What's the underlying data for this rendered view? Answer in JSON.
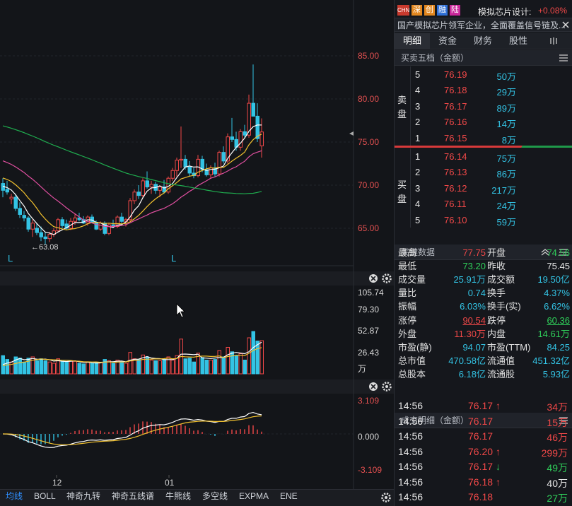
{
  "stock": {
    "badges": [
      "CHN",
      "深",
      "创",
      "融",
      "陆"
    ],
    "name": "模拟芯片设计:",
    "change": "+0.08%",
    "desc": "国产模拟芯片领军企业，全面覆盖信号链及..."
  },
  "tabs": [
    "明细",
    "资金",
    "财务",
    "股性"
  ],
  "order_book": {
    "title": "买卖五档（金额）",
    "sell_label": [
      "卖",
      "盘"
    ],
    "buy_label": [
      "买",
      "盘"
    ],
    "asks": [
      {
        "lvl": "5",
        "price": "76.19",
        "amt": "50万"
      },
      {
        "lvl": "4",
        "price": "76.18",
        "amt": "29万"
      },
      {
        "lvl": "3",
        "price": "76.17",
        "amt": "89万"
      },
      {
        "lvl": "2",
        "price": "76.16",
        "amt": "14万"
      },
      {
        "lvl": "1",
        "price": "76.15",
        "amt": "8万"
      }
    ],
    "bids": [
      {
        "lvl": "1",
        "price": "76.14",
        "amt": "75万"
      },
      {
        "lvl": "2",
        "price": "76.13",
        "amt": "86万"
      },
      {
        "lvl": "3",
        "price": "76.12",
        "amt": "217万"
      },
      {
        "lvl": "4",
        "price": "76.11",
        "amt": "24万"
      },
      {
        "lvl": "5",
        "price": "76.10",
        "amt": "59万"
      }
    ]
  },
  "key_data": {
    "title": "关键数据",
    "rows": [
      [
        {
          "l": "最高",
          "v": "77.75",
          "c": "red"
        },
        {
          "l": "开盘",
          "v": "74.56",
          "c": "green"
        }
      ],
      [
        {
          "l": "最低",
          "v": "73.20",
          "c": "green"
        },
        {
          "l": "昨收",
          "v": "75.45",
          "c": "white"
        }
      ],
      [
        {
          "l": "成交量",
          "v": "25.91万",
          "c": "cyan"
        },
        {
          "l": "成交额",
          "v": "19.50亿",
          "c": "cyan"
        }
      ],
      [
        {
          "l": "量比",
          "v": "0.74",
          "c": "cyan"
        },
        {
          "l": "换手",
          "v": "4.37%",
          "c": "cyan"
        }
      ],
      [
        {
          "l": "振幅",
          "v": "6.03%",
          "c": "cyan"
        },
        {
          "l": "换手(实)",
          "v": "6.62%",
          "c": "cyan"
        }
      ],
      [
        {
          "l": "涨停",
          "v": "90.54",
          "c": "red"
        },
        {
          "l": "跌停",
          "v": "60.36",
          "c": "green"
        }
      ],
      [
        {
          "l": "外盘",
          "v": "11.30万",
          "c": "red"
        },
        {
          "l": "内盘",
          "v": "14.61万",
          "c": "green"
        }
      ],
      [
        {
          "l": "市盈(静)",
          "v": "94.07",
          "c": "cyan"
        },
        {
          "l": "市盈(TTM)",
          "v": "84.25",
          "c": "cyan"
        }
      ],
      [
        {
          "l": "总市值",
          "v": "470.58亿",
          "c": "cyan"
        },
        {
          "l": "流通值",
          "v": "451.32亿",
          "c": "cyan"
        }
      ],
      [
        {
          "l": "总股本",
          "v": "6.18亿",
          "c": "cyan"
        },
        {
          "l": "流通股",
          "v": "5.93亿",
          "c": "cyan"
        }
      ]
    ]
  },
  "trades": {
    "title": "成交明细（金额）",
    "rows": [
      {
        "t": "14:56",
        "p": "76.17",
        "d": "up",
        "v": "34万",
        "c": "red",
        "vc": "red"
      },
      {
        "t": "14:56",
        "p": "76.17",
        "d": "",
        "v": "15万",
        "c": "red",
        "vc": "red"
      },
      {
        "t": "14:56",
        "p": "76.17",
        "d": "",
        "v": "46万",
        "c": "red",
        "vc": "red"
      },
      {
        "t": "14:56",
        "p": "76.20",
        "d": "up",
        "v": "299万",
        "c": "red",
        "vc": "red"
      },
      {
        "t": "14:56",
        "p": "76.17",
        "d": "down",
        "v": "49万",
        "c": "red",
        "vc": "green"
      },
      {
        "t": "14:56",
        "p": "76.18",
        "d": "up",
        "v": "40万",
        "c": "red",
        "vc": "white"
      },
      {
        "t": "14:56",
        "p": "76.18",
        "d": "",
        "v": "27万",
        "c": "red",
        "vc": "green"
      }
    ]
  },
  "toolbar": [
    "均线",
    "BOLL",
    "神奇九转",
    "神奇五线谱",
    "牛熊线",
    "多空线",
    "EXPMA",
    "ENE"
  ],
  "chart_data": [
    {
      "type": "candlestick",
      "yticks": [
        "85.00",
        "80.00",
        "75.00",
        "70.00",
        "65.00"
      ],
      "low_label": "←63.08",
      "markers": [
        "L",
        "L"
      ],
      "ohlc": [
        [
          70.2,
          70.8,
          68.6,
          69.4
        ],
        [
          69.5,
          70.5,
          68.9,
          69.2
        ],
        [
          68.4,
          69.0,
          67.8,
          68.6
        ],
        [
          68.6,
          69.0,
          67.0,
          67.3
        ],
        [
          67.3,
          68.0,
          66.2,
          66.6
        ],
        [
          66.5,
          67.0,
          65.8,
          66.2
        ],
        [
          66.2,
          66.4,
          64.6,
          64.9
        ],
        [
          64.9,
          66.0,
          64.0,
          65.6
        ],
        [
          65.0,
          65.6,
          64.2,
          64.5
        ],
        [
          64.5,
          65.2,
          63.5,
          64.0
        ],
        [
          64.0,
          64.5,
          63.1,
          63.8
        ],
        [
          63.8,
          64.6,
          63.4,
          64.3
        ],
        [
          64.3,
          65.0,
          64.0,
          64.7
        ],
        [
          64.7,
          66.2,
          64.5,
          66.0
        ],
        [
          66.0,
          66.3,
          65.0,
          65.3
        ],
        [
          65.5,
          66.0,
          64.8,
          65.0
        ],
        [
          65.0,
          66.2,
          64.8,
          65.8
        ],
        [
          65.8,
          66.7,
          65.4,
          66.2
        ],
        [
          66.2,
          66.8,
          65.8,
          66.0
        ],
        [
          66.0,
          66.4,
          65.5,
          65.6
        ],
        [
          65.6,
          66.5,
          65.3,
          66.3
        ],
        [
          66.3,
          66.6,
          65.6,
          65.7
        ],
        [
          65.7,
          65.9,
          64.8,
          64.9
        ],
        [
          64.9,
          65.8,
          64.7,
          65.6
        ],
        [
          65.6,
          65.8,
          64.2,
          64.4
        ],
        [
          64.4,
          65.6,
          64.2,
          65.4
        ],
        [
          65.4,
          66.0,
          65.0,
          65.2
        ],
        [
          65.2,
          66.5,
          65.0,
          66.3
        ],
        [
          66.3,
          66.8,
          65.6,
          65.8
        ],
        [
          65.8,
          66.2,
          65.2,
          66.0
        ],
        [
          66.0,
          68.5,
          65.8,
          68.2
        ],
        [
          68.2,
          69.5,
          67.8,
          69.2
        ],
        [
          69.2,
          70.0,
          68.4,
          68.8
        ],
        [
          68.8,
          70.8,
          68.5,
          70.5
        ],
        [
          70.5,
          71.6,
          69.6,
          69.8
        ],
        [
          69.8,
          70.5,
          69.0,
          70.1
        ],
        [
          70.1,
          70.4,
          69.0,
          69.4
        ],
        [
          69.4,
          70.0,
          68.6,
          69.8
        ],
        [
          69.8,
          70.6,
          69.0,
          69.2
        ],
        [
          69.2,
          71.0,
          69.0,
          70.8
        ],
        [
          70.8,
          72.0,
          70.5,
          71.7
        ],
        [
          71.7,
          73.2,
          71.0,
          72.9
        ],
        [
          72.9,
          76.8,
          72.0,
          73.0
        ],
        [
          73.0,
          73.5,
          71.8,
          72.1
        ],
        [
          72.1,
          72.8,
          71.0,
          71.4
        ],
        [
          71.4,
          72.0,
          70.8,
          71.1
        ],
        [
          71.1,
          73.5,
          70.9,
          73.0
        ],
        [
          73.0,
          73.4,
          71.5,
          71.8
        ],
        [
          71.8,
          72.5,
          71.0,
          71.2
        ],
        [
          71.2,
          72.3,
          70.8,
          72.0
        ],
        [
          72.0,
          72.6,
          71.0,
          71.3
        ],
        [
          71.3,
          74.0,
          71.0,
          73.8
        ],
        [
          73.8,
          74.5,
          72.5,
          72.8
        ],
        [
          72.8,
          76.0,
          72.5,
          75.6
        ],
        [
          75.6,
          77.8,
          75.0,
          75.3
        ],
        [
          75.3,
          76.2,
          74.0,
          74.4
        ],
        [
          74.4,
          76.5,
          74.0,
          76.2
        ],
        [
          76.2,
          77.0,
          75.5,
          75.8
        ],
        [
          75.8,
          80.5,
          75.5,
          79.5
        ],
        [
          79.5,
          84.0,
          78.0,
          78.0
        ],
        [
          78.0,
          79.5,
          75.0,
          75.4
        ],
        [
          74.56,
          77.75,
          73.2,
          76.17
        ]
      ]
    },
    {
      "type": "bar",
      "yticks": [
        "105.74",
        "79.30",
        "52.87",
        "26.43",
        "万"
      ]
    },
    {
      "type": "macd",
      "yticks": [
        "3.109",
        "0.000",
        "-3.109"
      ],
      "xticks": [
        "12",
        "01"
      ]
    }
  ]
}
